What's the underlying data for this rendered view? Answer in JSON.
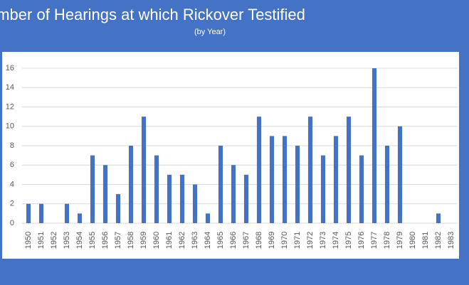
{
  "chart_data": {
    "type": "bar",
    "title": "Number of Hearings at which Rickover Testified",
    "subtitle": "(by Year)",
    "categories": [
      "1950",
      "1951",
      "1952",
      "1953",
      "1954",
      "1955",
      "1956",
      "1957",
      "1958",
      "1959",
      "1960",
      "1961",
      "1962",
      "1963",
      "1964",
      "1965",
      "1966",
      "1967",
      "1968",
      "1969",
      "1970",
      "1971",
      "1972",
      "1973",
      "1974",
      "1975",
      "1976",
      "1977",
      "1978",
      "1979",
      "1980",
      "1981",
      "1982",
      "1983"
    ],
    "values": [
      2,
      2,
      0,
      2,
      1,
      7,
      6,
      3,
      8,
      11,
      7,
      5,
      5,
      4,
      1,
      8,
      6,
      5,
      11,
      9,
      9,
      8,
      11,
      7,
      9,
      11,
      7,
      16,
      8,
      10,
      0,
      0,
      1,
      0
    ],
    "color": "#4472c4",
    "ylim": [
      0,
      16
    ],
    "yticks": [
      0,
      2,
      4,
      6,
      8,
      10,
      12,
      14,
      16
    ],
    "grid": true
  }
}
